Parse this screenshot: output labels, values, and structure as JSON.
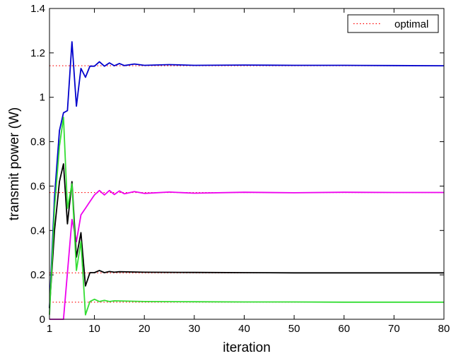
{
  "chart_data": {
    "type": "line",
    "xlabel": "iteration",
    "ylabel": "transmit power (W)",
    "xlim": [
      1,
      80
    ],
    "ylim": [
      0,
      1.4
    ],
    "xticks": [
      1,
      10,
      20,
      30,
      40,
      50,
      60,
      70,
      80
    ],
    "xtick_labels": [
      "1",
      "10",
      "20",
      "30",
      "40",
      "50",
      "60",
      "70",
      "80"
    ],
    "yticks": [
      0,
      0.2,
      0.4,
      0.6,
      0.8,
      1.0,
      1.2,
      1.4
    ],
    "ytick_labels": [
      "0",
      "0.2",
      "0.4",
      "0.6",
      "0.8",
      "1",
      "1.2",
      "1.4"
    ],
    "grid": false,
    "legend": {
      "position": "top-right",
      "entries": [
        {
          "label": "optimal",
          "style": "dotted",
          "color": "#ff0000"
        }
      ]
    },
    "series": [
      {
        "color": "#0000cc",
        "points": [
          [
            1,
            0.05
          ],
          [
            2,
            0.55
          ],
          [
            3,
            0.85
          ],
          [
            3.8,
            0.93
          ],
          [
            4.6,
            0.94
          ],
          [
            5.5,
            1.25
          ],
          [
            6.4,
            0.96
          ],
          [
            7.3,
            1.13
          ],
          [
            8.2,
            1.09
          ],
          [
            9.1,
            1.14
          ],
          [
            10,
            1.14
          ],
          [
            11,
            1.16
          ],
          [
            12,
            1.14
          ],
          [
            13,
            1.155
          ],
          [
            14,
            1.142
          ],
          [
            15,
            1.152
          ],
          [
            16,
            1.143
          ],
          [
            18,
            1.15
          ],
          [
            20,
            1.144
          ],
          [
            25,
            1.147
          ],
          [
            30,
            1.144
          ],
          [
            40,
            1.145
          ],
          [
            50,
            1.144
          ],
          [
            60,
            1.144
          ],
          [
            70,
            1.143
          ],
          [
            80,
            1.142
          ]
        ]
      },
      {
        "color": "#ee00ee",
        "points": [
          [
            1,
            0
          ],
          [
            3.8,
            0
          ],
          [
            5.5,
            0.45
          ],
          [
            6.4,
            0.35
          ],
          [
            7.3,
            0.47
          ],
          [
            8.2,
            0.5
          ],
          [
            9.1,
            0.53
          ],
          [
            10,
            0.56
          ],
          [
            11,
            0.58
          ],
          [
            12,
            0.56
          ],
          [
            13,
            0.58
          ],
          [
            14,
            0.562
          ],
          [
            15,
            0.578
          ],
          [
            16,
            0.565
          ],
          [
            18,
            0.575
          ],
          [
            20,
            0.567
          ],
          [
            25,
            0.573
          ],
          [
            30,
            0.568
          ],
          [
            40,
            0.572
          ],
          [
            50,
            0.57
          ],
          [
            60,
            0.572
          ],
          [
            70,
            0.571
          ],
          [
            80,
            0.571
          ]
        ]
      },
      {
        "color": "#000000",
        "points": [
          [
            1,
            0.05
          ],
          [
            2,
            0.4
          ],
          [
            3,
            0.62
          ],
          [
            3.8,
            0.7
          ],
          [
            4.6,
            0.43
          ],
          [
            5.5,
            0.62
          ],
          [
            6.4,
            0.28
          ],
          [
            7.3,
            0.39
          ],
          [
            8.2,
            0.15
          ],
          [
            9.1,
            0.21
          ],
          [
            10,
            0.21
          ],
          [
            11,
            0.22
          ],
          [
            12,
            0.21
          ],
          [
            13,
            0.215
          ],
          [
            14,
            0.212
          ],
          [
            15,
            0.214
          ],
          [
            20,
            0.212
          ],
          [
            30,
            0.211
          ],
          [
            40,
            0.21
          ],
          [
            50,
            0.209
          ],
          [
            60,
            0.209
          ],
          [
            70,
            0.209
          ],
          [
            80,
            0.209
          ]
        ]
      },
      {
        "color": "#33dd33",
        "points": [
          [
            1,
            0.02
          ],
          [
            2,
            0.5
          ],
          [
            3,
            0.78
          ],
          [
            3.8,
            0.91
          ],
          [
            4.6,
            0.5
          ],
          [
            5.5,
            0.61
          ],
          [
            6.4,
            0.22
          ],
          [
            7.3,
            0.35
          ],
          [
            8.2,
            0.02
          ],
          [
            9.1,
            0.08
          ],
          [
            10,
            0.09
          ],
          [
            11,
            0.08
          ],
          [
            12,
            0.085
          ],
          [
            13,
            0.08
          ],
          [
            14,
            0.083
          ],
          [
            20,
            0.08
          ],
          [
            30,
            0.079
          ],
          [
            40,
            0.078
          ],
          [
            50,
            0.078
          ],
          [
            60,
            0.077
          ],
          [
            70,
            0.077
          ],
          [
            80,
            0.077
          ]
        ]
      }
    ],
    "optimal_levels": [
      {
        "y": 1.142,
        "x_from": 1,
        "x_to": 80
      },
      {
        "y": 0.571,
        "x_from": 1,
        "x_to": 80
      },
      {
        "y": 0.209,
        "x_from": 1,
        "x_to": 80
      },
      {
        "y": 0.077,
        "x_from": 1,
        "x_to": 80
      }
    ]
  }
}
